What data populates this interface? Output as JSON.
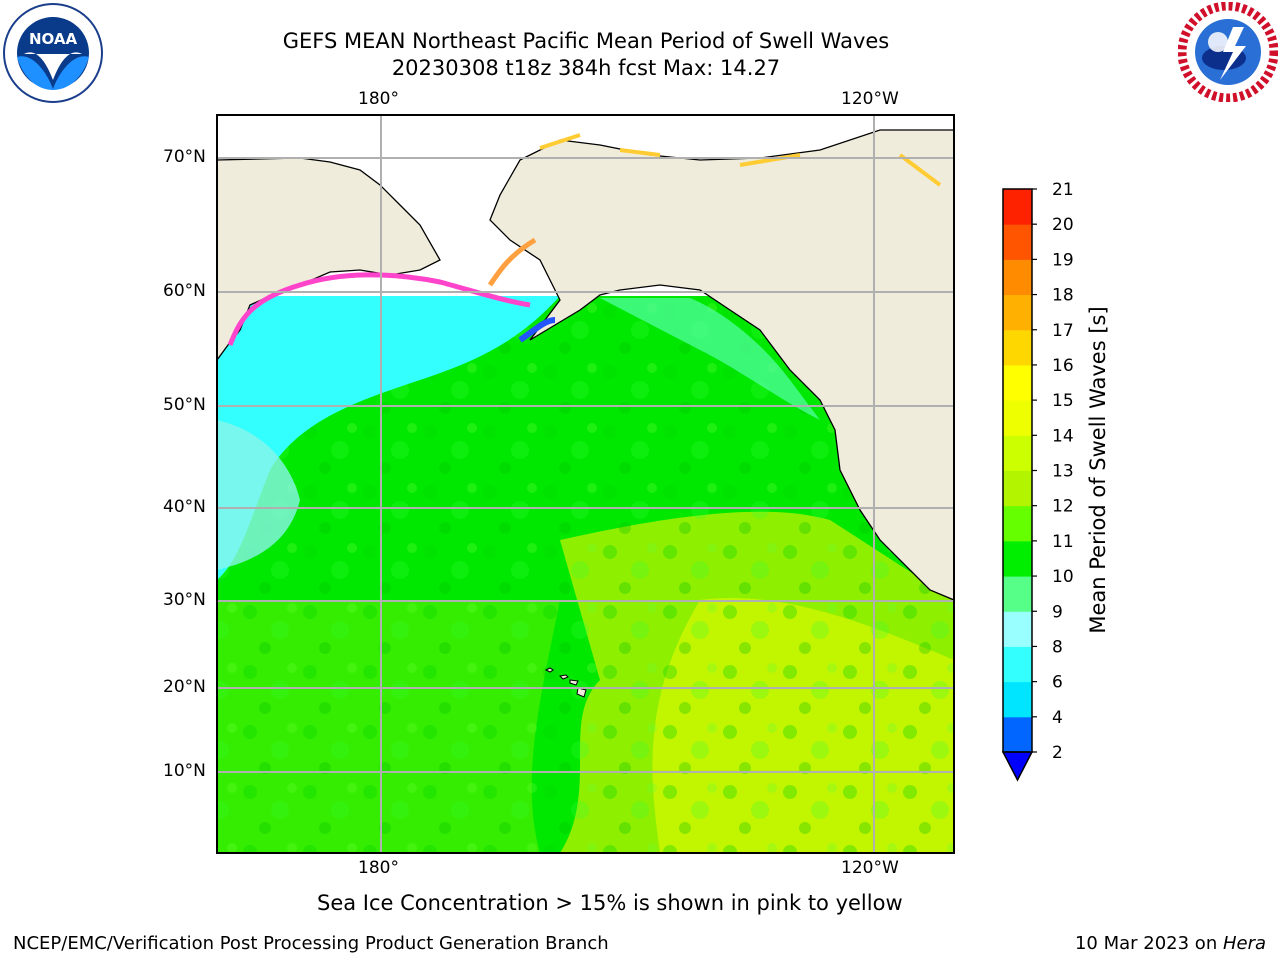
{
  "header": {
    "title_line1": "GEFS MEAN Northeast Pacific Mean Period of Swell Waves",
    "title_line2": "20230308 t18z 384h fcst   Max: 14.27"
  },
  "logos": {
    "left": "NOAA",
    "left_ring_text": "NATIONAL OCEANIC AND ATMOSPHERIC ADMINISTRATION • U.S. DEPARTMENT OF COMMERCE",
    "right_ring_text": "NATIONAL WEATHER SERVICE"
  },
  "map": {
    "lon_labels_top": [
      "180°",
      "120°W"
    ],
    "lon_labels_bottom": [
      "180°",
      "120°W"
    ],
    "lat_labels": [
      "70°N",
      "60°N",
      "50°N",
      "40°N",
      "30°N",
      "20°N",
      "10°N"
    ],
    "colors": {
      "land": "#efecdb",
      "ice_free_cold": "#33ffff",
      "ocean_green": "#00e800",
      "ocean_yellowgreen": "#c8f000",
      "grid": "#b0b0b0"
    }
  },
  "colorbar": {
    "label": "Mean Period of Swell Waves [s]",
    "ticks": [
      "2",
      "4",
      "6",
      "8",
      "9",
      "10",
      "11",
      "12",
      "13",
      "14",
      "15",
      "16",
      "17",
      "18",
      "19",
      "20",
      "21"
    ],
    "colors": [
      "#0066ff",
      "#00e5ff",
      "#33ffff",
      "#99ffff",
      "#55ff88",
      "#00ee00",
      "#66ff00",
      "#b3f500",
      "#ccff00",
      "#eeff00",
      "#ffff00",
      "#ffd700",
      "#ffb000",
      "#ff8c00",
      "#ff5500",
      "#ff2200"
    ],
    "under_color": "#0000ff"
  },
  "note": "Sea Ice Concentration > 15% is shown in pink to yellow",
  "footer": {
    "left": "NCEP/EMC/Verification Post Processing Product Generation Branch",
    "right_prefix": "10 Mar 2023 on ",
    "right_italic": "Hera"
  }
}
